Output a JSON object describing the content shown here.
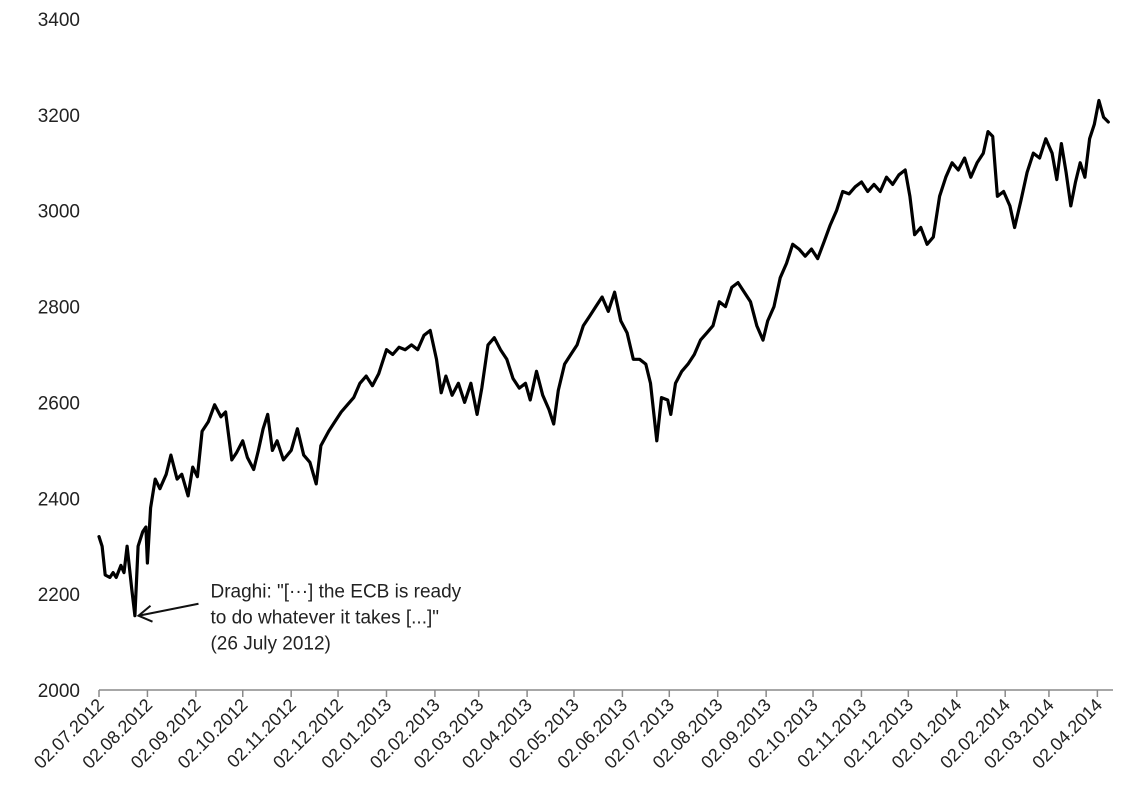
{
  "chart_data": {
    "type": "line",
    "title": "",
    "xlabel": "",
    "ylabel": "",
    "grid": false,
    "legend": "none",
    "ylim": [
      2000,
      3400
    ],
    "yticks": [
      2000,
      2200,
      2400,
      2600,
      2800,
      3000,
      3200,
      3400
    ],
    "xlim": [
      "2012-07-02",
      "2014-04-12"
    ],
    "xticks": [
      {
        "date": "2012-07-02",
        "label": "02.07.2012"
      },
      {
        "date": "2012-08-02",
        "label": "02.08.2012"
      },
      {
        "date": "2012-09-02",
        "label": "02.09.2012"
      },
      {
        "date": "2012-10-02",
        "label": "02.10.2012"
      },
      {
        "date": "2012-11-02",
        "label": "02.11.2012"
      },
      {
        "date": "2012-12-02",
        "label": "02.12.2012"
      },
      {
        "date": "2013-01-02",
        "label": "02.01.2013"
      },
      {
        "date": "2013-02-02",
        "label": "02.02.2013"
      },
      {
        "date": "2013-03-02",
        "label": "02.03.2013"
      },
      {
        "date": "2013-04-02",
        "label": "02.04.2013"
      },
      {
        "date": "2013-05-02",
        "label": "02.05.2013"
      },
      {
        "date": "2013-06-02",
        "label": "02.06.2013"
      },
      {
        "date": "2013-07-02",
        "label": "02.07.2013"
      },
      {
        "date": "2013-08-02",
        "label": "02.08.2013"
      },
      {
        "date": "2013-09-02",
        "label": "02.09.2013"
      },
      {
        "date": "2013-10-02",
        "label": "02.10.2013"
      },
      {
        "date": "2013-11-02",
        "label": "02.11.2013"
      },
      {
        "date": "2013-12-02",
        "label": "02.12.2013"
      },
      {
        "date": "2014-01-02",
        "label": "02.01.2014"
      },
      {
        "date": "2014-02-02",
        "label": "02.02.2014"
      },
      {
        "date": "2014-03-02",
        "label": "02.03.2014"
      },
      {
        "date": "2014-04-02",
        "label": "02.04.2014"
      }
    ],
    "series": [
      {
        "color": "#000000",
        "points": [
          [
            "2012-07-02",
            2320
          ],
          [
            "2012-07-04",
            2300
          ],
          [
            "2012-07-06",
            2240
          ],
          [
            "2012-07-09",
            2235
          ],
          [
            "2012-07-11",
            2245
          ],
          [
            "2012-07-13",
            2235
          ],
          [
            "2012-07-16",
            2260
          ],
          [
            "2012-07-18",
            2245
          ],
          [
            "2012-07-20",
            2300
          ],
          [
            "2012-07-23",
            2210
          ],
          [
            "2012-07-25",
            2155
          ],
          [
            "2012-07-27",
            2300
          ],
          [
            "2012-07-30",
            2330
          ],
          [
            "2012-08-01",
            2340
          ],
          [
            "2012-08-02",
            2265
          ],
          [
            "2012-08-04",
            2380
          ],
          [
            "2012-08-07",
            2440
          ],
          [
            "2012-08-10",
            2420
          ],
          [
            "2012-08-14",
            2450
          ],
          [
            "2012-08-17",
            2490
          ],
          [
            "2012-08-21",
            2440
          ],
          [
            "2012-08-24",
            2450
          ],
          [
            "2012-08-28",
            2405
          ],
          [
            "2012-08-31",
            2465
          ],
          [
            "2012-09-03",
            2445
          ],
          [
            "2012-09-06",
            2540
          ],
          [
            "2012-09-10",
            2560
          ],
          [
            "2012-09-14",
            2595
          ],
          [
            "2012-09-18",
            2570
          ],
          [
            "2012-09-21",
            2580
          ],
          [
            "2012-09-25",
            2480
          ],
          [
            "2012-09-28",
            2495
          ],
          [
            "2012-10-02",
            2520
          ],
          [
            "2012-10-05",
            2485
          ],
          [
            "2012-10-09",
            2460
          ],
          [
            "2012-10-12",
            2500
          ],
          [
            "2012-10-15",
            2545
          ],
          [
            "2012-10-18",
            2575
          ],
          [
            "2012-10-21",
            2500
          ],
          [
            "2012-10-24",
            2520
          ],
          [
            "2012-10-28",
            2480
          ],
          [
            "2012-11-02",
            2500
          ],
          [
            "2012-11-06",
            2545
          ],
          [
            "2012-11-10",
            2490
          ],
          [
            "2012-11-14",
            2475
          ],
          [
            "2012-11-18",
            2430
          ],
          [
            "2012-11-21",
            2510
          ],
          [
            "2012-11-26",
            2540
          ],
          [
            "2012-11-30",
            2560
          ],
          [
            "2012-12-04",
            2580
          ],
          [
            "2012-12-08",
            2595
          ],
          [
            "2012-12-12",
            2610
          ],
          [
            "2012-12-16",
            2640
          ],
          [
            "2012-12-20",
            2655
          ],
          [
            "2012-12-24",
            2635
          ],
          [
            "2012-12-28",
            2660
          ],
          [
            "2013-01-02",
            2710
          ],
          [
            "2013-01-06",
            2700
          ],
          [
            "2013-01-10",
            2715
          ],
          [
            "2013-01-14",
            2710
          ],
          [
            "2013-01-18",
            2720
          ],
          [
            "2013-01-22",
            2710
          ],
          [
            "2013-01-26",
            2740
          ],
          [
            "2013-01-30",
            2750
          ],
          [
            "2013-02-03",
            2690
          ],
          [
            "2013-02-06",
            2620
          ],
          [
            "2013-02-09",
            2655
          ],
          [
            "2013-02-13",
            2615
          ],
          [
            "2013-02-17",
            2640
          ],
          [
            "2013-02-21",
            2600
          ],
          [
            "2013-02-25",
            2640
          ],
          [
            "2013-03-01",
            2575
          ],
          [
            "2013-03-04",
            2630
          ],
          [
            "2013-03-08",
            2720
          ],
          [
            "2013-03-12",
            2735
          ],
          [
            "2013-03-16",
            2710
          ],
          [
            "2013-03-20",
            2690
          ],
          [
            "2013-03-24",
            2650
          ],
          [
            "2013-03-28",
            2630
          ],
          [
            "2013-04-01",
            2640
          ],
          [
            "2013-04-04",
            2605
          ],
          [
            "2013-04-08",
            2665
          ],
          [
            "2013-04-12",
            2615
          ],
          [
            "2013-04-16",
            2585
          ],
          [
            "2013-04-19",
            2555
          ],
          [
            "2013-04-22",
            2625
          ],
          [
            "2013-04-26",
            2680
          ],
          [
            "2013-04-30",
            2700
          ],
          [
            "2013-05-04",
            2720
          ],
          [
            "2013-05-08",
            2760
          ],
          [
            "2013-05-12",
            2780
          ],
          [
            "2013-05-16",
            2800
          ],
          [
            "2013-05-20",
            2820
          ],
          [
            "2013-05-24",
            2790
          ],
          [
            "2013-05-28",
            2830
          ],
          [
            "2013-06-01",
            2770
          ],
          [
            "2013-06-05",
            2745
          ],
          [
            "2013-06-09",
            2690
          ],
          [
            "2013-06-13",
            2690
          ],
          [
            "2013-06-17",
            2680
          ],
          [
            "2013-06-20",
            2640
          ],
          [
            "2013-06-24",
            2520
          ],
          [
            "2013-06-27",
            2610
          ],
          [
            "2013-07-01",
            2605
          ],
          [
            "2013-07-03",
            2575
          ],
          [
            "2013-07-06",
            2640
          ],
          [
            "2013-07-10",
            2665
          ],
          [
            "2013-07-14",
            2680
          ],
          [
            "2013-07-18",
            2700
          ],
          [
            "2013-07-22",
            2730
          ],
          [
            "2013-07-26",
            2745
          ],
          [
            "2013-07-30",
            2760
          ],
          [
            "2013-08-03",
            2810
          ],
          [
            "2013-08-07",
            2800
          ],
          [
            "2013-08-11",
            2840
          ],
          [
            "2013-08-15",
            2850
          ],
          [
            "2013-08-19",
            2830
          ],
          [
            "2013-08-23",
            2810
          ],
          [
            "2013-08-27",
            2760
          ],
          [
            "2013-08-31",
            2730
          ],
          [
            "2013-09-03",
            2770
          ],
          [
            "2013-09-07",
            2800
          ],
          [
            "2013-09-11",
            2860
          ],
          [
            "2013-09-15",
            2890
          ],
          [
            "2013-09-19",
            2930
          ],
          [
            "2013-09-23",
            2920
          ],
          [
            "2013-09-27",
            2905
          ],
          [
            "2013-10-01",
            2920
          ],
          [
            "2013-10-05",
            2900
          ],
          [
            "2013-10-09",
            2935
          ],
          [
            "2013-10-13",
            2970
          ],
          [
            "2013-10-17",
            3000
          ],
          [
            "2013-10-21",
            3040
          ],
          [
            "2013-10-25",
            3035
          ],
          [
            "2013-10-29",
            3050
          ],
          [
            "2013-11-02",
            3060
          ],
          [
            "2013-11-06",
            3040
          ],
          [
            "2013-11-10",
            3055
          ],
          [
            "2013-11-14",
            3040
          ],
          [
            "2013-11-18",
            3070
          ],
          [
            "2013-11-22",
            3055
          ],
          [
            "2013-11-26",
            3075
          ],
          [
            "2013-11-30",
            3085
          ],
          [
            "2013-12-03",
            3030
          ],
          [
            "2013-12-06",
            2950
          ],
          [
            "2013-12-10",
            2965
          ],
          [
            "2013-12-14",
            2930
          ],
          [
            "2013-12-18",
            2945
          ],
          [
            "2013-12-22",
            3030
          ],
          [
            "2013-12-26",
            3070
          ],
          [
            "2013-12-30",
            3100
          ],
          [
            "2014-01-03",
            3085
          ],
          [
            "2014-01-07",
            3110
          ],
          [
            "2014-01-11",
            3070
          ],
          [
            "2014-01-15",
            3100
          ],
          [
            "2014-01-19",
            3120
          ],
          [
            "2014-01-22",
            3165
          ],
          [
            "2014-01-25",
            3155
          ],
          [
            "2014-01-28",
            3030
          ],
          [
            "2014-02-01",
            3040
          ],
          [
            "2014-02-05",
            3010
          ],
          [
            "2014-02-08",
            2965
          ],
          [
            "2014-02-12",
            3020
          ],
          [
            "2014-02-16",
            3080
          ],
          [
            "2014-02-20",
            3120
          ],
          [
            "2014-02-24",
            3110
          ],
          [
            "2014-02-28",
            3150
          ],
          [
            "2014-03-04",
            3120
          ],
          [
            "2014-03-07",
            3065
          ],
          [
            "2014-03-10",
            3140
          ],
          [
            "2014-03-13",
            3080
          ],
          [
            "2014-03-16",
            3010
          ],
          [
            "2014-03-19",
            3060
          ],
          [
            "2014-03-22",
            3100
          ],
          [
            "2014-03-25",
            3070
          ],
          [
            "2014-03-28",
            3150
          ],
          [
            "2014-03-31",
            3180
          ],
          [
            "2014-04-03",
            3230
          ],
          [
            "2014-04-06",
            3195
          ],
          [
            "2014-04-09",
            3185
          ]
        ]
      }
    ],
    "annotations": [
      {
        "text_lines": [
          "Draghi: \"[···] the ECB is ready",
          "to do whatever it takes [...]\"",
          "(26 July 2012)"
        ],
        "points_to": [
          "2012-07-26",
          2155
        ]
      }
    ]
  }
}
